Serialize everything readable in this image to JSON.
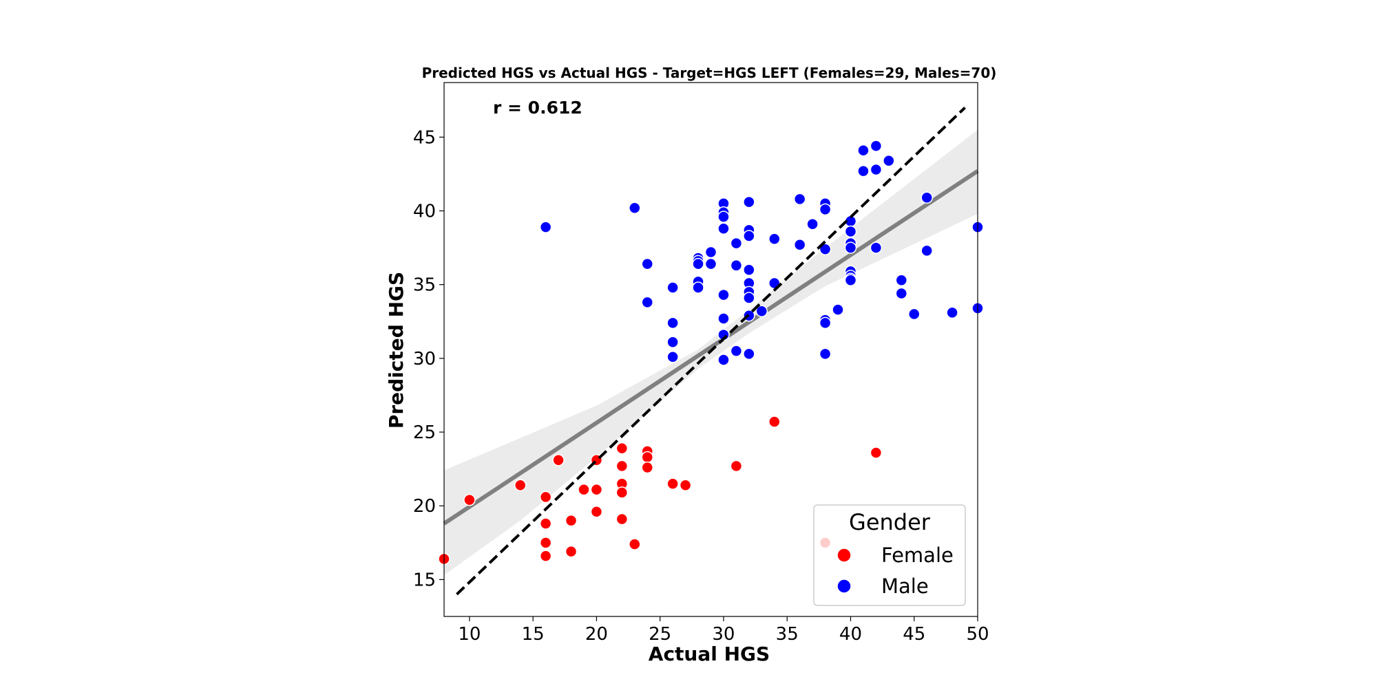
{
  "chart_data": {
    "type": "scatter",
    "title": "Predicted HGS vs Actual HGS - Target=HGS LEFT (Females=29, Males=70)",
    "xlabel": "Actual HGS",
    "ylabel": "Predicted HGS",
    "xlim": [
      8,
      50
    ],
    "ylim": [
      12.5,
      48.7
    ],
    "xticks": [
      10,
      15,
      20,
      25,
      30,
      35,
      40,
      45,
      50
    ],
    "yticks": [
      15,
      20,
      25,
      30,
      35,
      40,
      45
    ],
    "grid": false,
    "annotation": "r = 0.612",
    "legend": {
      "title": "Gender",
      "placement": "lower-right",
      "entries": [
        {
          "label": "Female",
          "color": "#ff0000"
        },
        {
          "label": "Male",
          "color": "#0000ff"
        }
      ]
    },
    "series": [
      {
        "name": "Female",
        "color": "#ff0000",
        "points": [
          [
            8,
            16.4
          ],
          [
            10,
            20.4
          ],
          [
            14,
            21.4
          ],
          [
            16,
            20.6
          ],
          [
            16,
            18.8
          ],
          [
            16,
            17.5
          ],
          [
            16,
            16.6
          ],
          [
            17,
            23.1
          ],
          [
            18,
            19.0
          ],
          [
            18,
            16.9
          ],
          [
            19,
            21.1
          ],
          [
            20,
            23.1
          ],
          [
            20,
            21.1
          ],
          [
            20,
            19.6
          ],
          [
            22,
            23.9
          ],
          [
            22,
            22.7
          ],
          [
            22,
            21.5
          ],
          [
            22,
            20.9
          ],
          [
            22,
            19.1
          ],
          [
            23,
            17.4
          ],
          [
            24,
            23.7
          ],
          [
            24,
            23.3
          ],
          [
            24,
            22.6
          ],
          [
            26,
            21.5
          ],
          [
            27,
            21.4
          ],
          [
            31,
            22.7
          ],
          [
            34,
            25.7
          ],
          [
            38,
            17.5
          ],
          [
            42,
            23.6
          ]
        ]
      },
      {
        "name": "Male",
        "color": "#0000ff",
        "points": [
          [
            16,
            38.9
          ],
          [
            23,
            40.2
          ],
          [
            24,
            36.4
          ],
          [
            24,
            33.8
          ],
          [
            26,
            34.8
          ],
          [
            26,
            32.4
          ],
          [
            26,
            31.1
          ],
          [
            26,
            30.1
          ],
          [
            28,
            36.8
          ],
          [
            28,
            36.6
          ],
          [
            28,
            36.4
          ],
          [
            28,
            35.2
          ],
          [
            28,
            34.8
          ],
          [
            29,
            37.2
          ],
          [
            29,
            36.4
          ],
          [
            30,
            40.5
          ],
          [
            30,
            39.9
          ],
          [
            30,
            39.6
          ],
          [
            30,
            38.8
          ],
          [
            30,
            34.3
          ],
          [
            30,
            32.7
          ],
          [
            30,
            31.6
          ],
          [
            30,
            29.9
          ],
          [
            31,
            37.8
          ],
          [
            31,
            36.3
          ],
          [
            31,
            30.5
          ],
          [
            32,
            40.6
          ],
          [
            32,
            38.7
          ],
          [
            32,
            38.3
          ],
          [
            32,
            36.0
          ],
          [
            32,
            35.1
          ],
          [
            32,
            34.5
          ],
          [
            32,
            34.1
          ],
          [
            32,
            32.9
          ],
          [
            32,
            30.3
          ],
          [
            34,
            38.1
          ],
          [
            34,
            35.1
          ],
          [
            36,
            40.8
          ],
          [
            36,
            37.7
          ],
          [
            37,
            39.1
          ],
          [
            38,
            40.5
          ],
          [
            38,
            40.1
          ],
          [
            38,
            37.4
          ],
          [
            38,
            32.6
          ],
          [
            38,
            32.4
          ],
          [
            38,
            30.3
          ],
          [
            39,
            33.3
          ],
          [
            40,
            39.3
          ],
          [
            40,
            38.6
          ],
          [
            40,
            37.8
          ],
          [
            40,
            37.5
          ],
          [
            40,
            35.9
          ],
          [
            40,
            35.6
          ],
          [
            40,
            35.4
          ],
          [
            40,
            35.3
          ],
          [
            41,
            44.1
          ],
          [
            41,
            42.7
          ],
          [
            42,
            44.4
          ],
          [
            42,
            42.8
          ],
          [
            42,
            37.5
          ],
          [
            43,
            43.4
          ],
          [
            44,
            35.3
          ],
          [
            44,
            34.4
          ],
          [
            45,
            33.0
          ],
          [
            46,
            40.9
          ],
          [
            46,
            37.3
          ],
          [
            48,
            33.1
          ],
          [
            50,
            38.9
          ],
          [
            50,
            33.4
          ],
          [
            33,
            33.2
          ]
        ]
      }
    ],
    "regression_line": {
      "color": "#808080",
      "from": [
        8,
        18.8
      ],
      "to": [
        50,
        42.7
      ]
    },
    "confidence_band": {
      "color": "#ebebeb",
      "upper": [
        [
          8,
          22.4
        ],
        [
          20,
          26.8
        ],
        [
          28,
          30.6
        ],
        [
          32,
          33.3
        ],
        [
          38,
          37.5
        ],
        [
          44,
          41.5
        ],
        [
          50,
          45.5
        ]
      ],
      "lower": [
        [
          8,
          15.3
        ],
        [
          14,
          19.0
        ],
        [
          20,
          23.3
        ],
        [
          28,
          29.3
        ],
        [
          32,
          31.7
        ],
        [
          38,
          34.9
        ],
        [
          50,
          39.8
        ]
      ]
    },
    "identity_line": {
      "color": "#000000",
      "style": "dashed",
      "from": [
        9,
        14.0
      ],
      "to": [
        49,
        47.0
      ]
    }
  }
}
